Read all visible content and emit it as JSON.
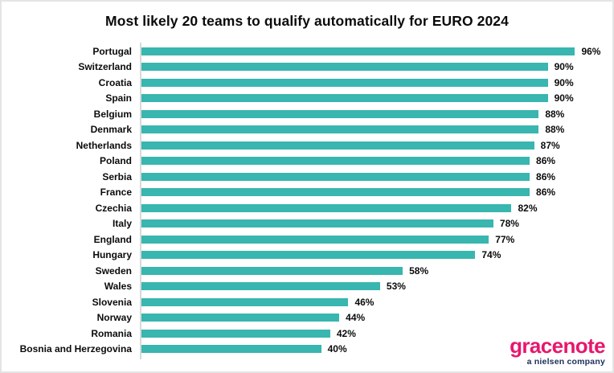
{
  "title": "Most likely 20 teams to qualify automatically for EURO 2024",
  "chart_data": {
    "type": "bar",
    "orientation": "horizontal",
    "title": "Most likely 20 teams to qualify automatically for EURO 2024",
    "categories": [
      "Portugal",
      "Switzerland",
      "Croatia",
      "Spain",
      "Belgium",
      "Denmark",
      "Netherlands",
      "Poland",
      "Serbia",
      "France",
      "Czechia",
      "Italy",
      "England",
      "Hungary",
      "Sweden",
      "Wales",
      "Slovenia",
      "Norway",
      "Romania",
      "Bosnia and Herzegovina"
    ],
    "values": [
      96,
      90,
      90,
      90,
      88,
      88,
      87,
      86,
      86,
      86,
      82,
      78,
      77,
      74,
      58,
      53,
      46,
      44,
      42,
      40
    ],
    "value_suffix": "%",
    "xlabel": "",
    "ylabel": "",
    "xlim": [
      0,
      100
    ],
    "grid": false,
    "legend": false,
    "bar_color": "#38b6af"
  },
  "branding": {
    "logo_text": "gracenote",
    "logo_tagline": "a nielsen company",
    "logo_color": "#e7176d",
    "tagline_color": "#1b2d5c"
  },
  "colors": {
    "bar": "#38b6af",
    "axis_line": "#d9d9d9",
    "text": "#0b0b0b",
    "background": "#ffffff",
    "border": "#e4e4e4"
  }
}
